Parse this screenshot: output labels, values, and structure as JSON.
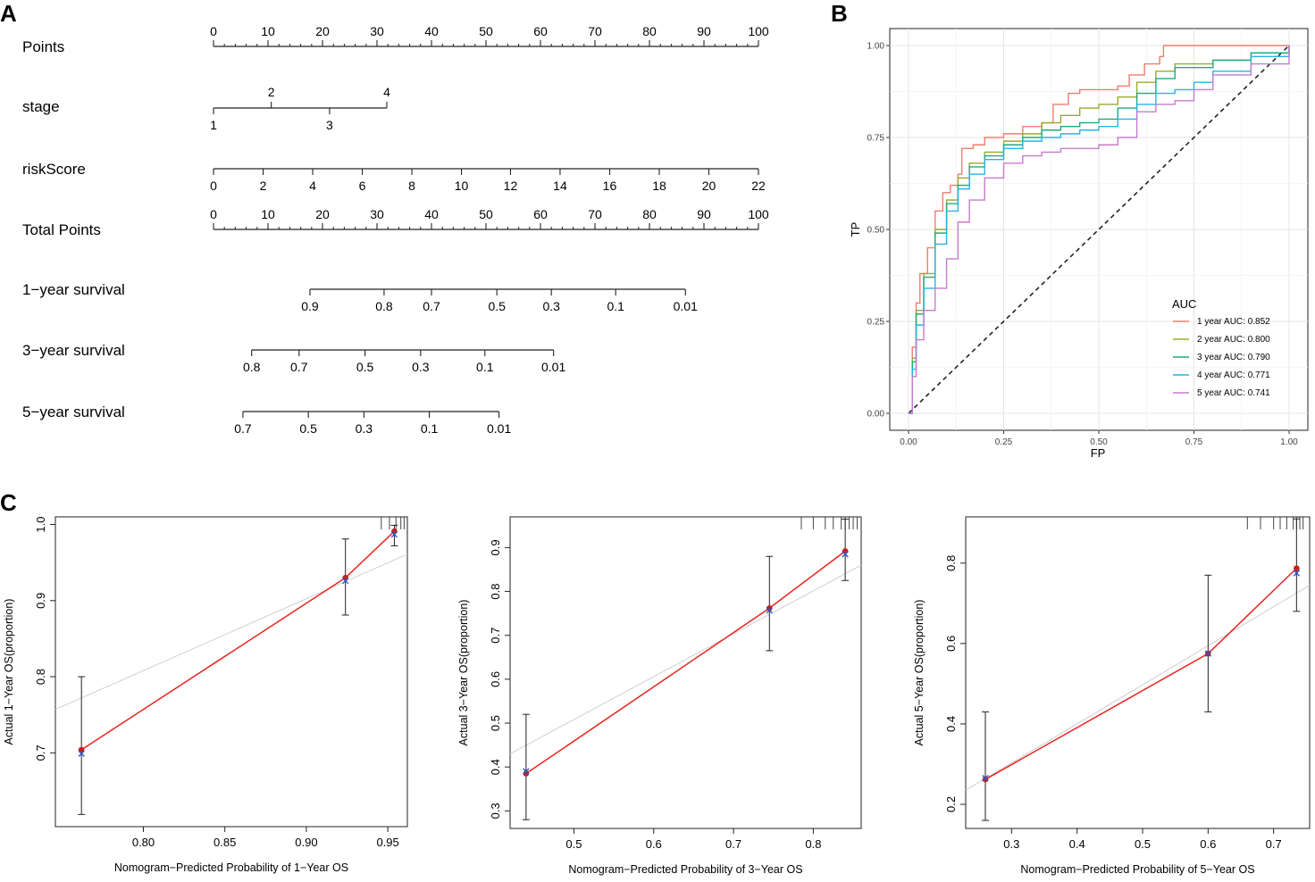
{
  "panels": {
    "a_label": "A",
    "b_label": "B",
    "c_label": "C"
  },
  "nomogram": {
    "rows": [
      {
        "name": "Points",
        "ticks": [
          {
            "v": 0,
            "t": "0"
          },
          {
            "v": 10,
            "t": "10"
          },
          {
            "v": 20,
            "t": "20"
          },
          {
            "v": 30,
            "t": "30"
          },
          {
            "v": 40,
            "t": "40"
          },
          {
            "v": 50,
            "t": "50"
          },
          {
            "v": 60,
            "t": "60"
          },
          {
            "v": 70,
            "t": "70"
          },
          {
            "v": 80,
            "t": "80"
          },
          {
            "v": 90,
            "t": "90"
          },
          {
            "v": 100,
            "t": "100"
          }
        ]
      },
      {
        "name": "stage",
        "ticks": [
          {
            "v": 0,
            "t": "1"
          },
          {
            "v": 10.6,
            "t": "2"
          },
          {
            "v": 21.3,
            "t": "3"
          },
          {
            "v": 31.8,
            "t": "4"
          }
        ]
      },
      {
        "name": "riskScore",
        "ticks": [
          {
            "v": 0,
            "t": "0"
          },
          {
            "v": 9.1,
            "t": "2"
          },
          {
            "v": 18.2,
            "t": "4"
          },
          {
            "v": 27.3,
            "t": "6"
          },
          {
            "v": 36.4,
            "t": "8"
          },
          {
            "v": 45.5,
            "t": "10"
          },
          {
            "v": 54.5,
            "t": "12"
          },
          {
            "v": 63.6,
            "t": "14"
          },
          {
            "v": 72.7,
            "t": "16"
          },
          {
            "v": 81.8,
            "t": "18"
          },
          {
            "v": 90.9,
            "t": "20"
          },
          {
            "v": 100,
            "t": "22"
          }
        ]
      },
      {
        "name": "Total Points",
        "ticks": [
          {
            "v": 0,
            "t": "0"
          },
          {
            "v": 10,
            "t": "10"
          },
          {
            "v": 20,
            "t": "20"
          },
          {
            "v": 30,
            "t": "30"
          },
          {
            "v": 40,
            "t": "40"
          },
          {
            "v": 50,
            "t": "50"
          },
          {
            "v": 60,
            "t": "60"
          },
          {
            "v": 70,
            "t": "70"
          },
          {
            "v": 80,
            "t": "80"
          },
          {
            "v": 90,
            "t": "90"
          },
          {
            "v": 100,
            "t": "100"
          }
        ]
      },
      {
        "name": "1−year survival",
        "ticks": [
          {
            "v": 17.7,
            "t": "0.9"
          },
          {
            "v": 31.3,
            "t": "0.8"
          },
          {
            "v": 40.0,
            "t": "0.7"
          },
          {
            "v": 52.0,
            "t": "0.5"
          },
          {
            "v": 62.0,
            "t": "0.3"
          },
          {
            "v": 73.8,
            "t": "0.1"
          },
          {
            "v": 86.6,
            "t": "0.01"
          }
        ]
      },
      {
        "name": "3−year survival",
        "ticks": [
          {
            "v": 7.0,
            "t": "0.8"
          },
          {
            "v": 15.7,
            "t": "0.7"
          },
          {
            "v": 27.8,
            "t": "0.5"
          },
          {
            "v": 38.0,
            "t": "0.3"
          },
          {
            "v": 49.8,
            "t": "0.1"
          },
          {
            "v": 62.4,
            "t": "0.01"
          }
        ]
      },
      {
        "name": "5−year survival",
        "ticks": [
          {
            "v": 5.4,
            "t": "0.7"
          },
          {
            "v": 17.4,
            "t": "0.5"
          },
          {
            "v": 27.6,
            "t": "0.3"
          },
          {
            "v": 39.6,
            "t": "0.1"
          },
          {
            "v": 52.4,
            "t": "0.01"
          }
        ]
      }
    ]
  },
  "chart_data": [
    {
      "type": "line",
      "panel": "B",
      "title": "",
      "xlabel": "FP",
      "ylabel": "TP",
      "xlim": [
        0,
        1
      ],
      "ylim": [
        0,
        1
      ],
      "x_ticks": [
        "0.00",
        "0.25",
        "0.50",
        "0.75",
        "1.00"
      ],
      "y_ticks": [
        "0.00",
        "0.25",
        "0.50",
        "0.75",
        "1.00"
      ],
      "legend_title": "AUC",
      "legend_position": "bottom-right",
      "diagonal_reference": true,
      "series": [
        {
          "name": "1 year AUC: 0.852",
          "color": "#F07C6E",
          "points": [
            [
              0,
              0
            ],
            [
              0.01,
              0.18
            ],
            [
              0.02,
              0.3
            ],
            [
              0.03,
              0.38
            ],
            [
              0.05,
              0.45
            ],
            [
              0.07,
              0.55
            ],
            [
              0.09,
              0.6
            ],
            [
              0.11,
              0.62
            ],
            [
              0.13,
              0.65
            ],
            [
              0.14,
              0.72
            ],
            [
              0.17,
              0.73
            ],
            [
              0.2,
              0.75
            ],
            [
              0.25,
              0.76
            ],
            [
              0.3,
              0.78
            ],
            [
              0.35,
              0.79
            ],
            [
              0.38,
              0.84
            ],
            [
              0.42,
              0.87
            ],
            [
              0.45,
              0.88
            ],
            [
              0.55,
              0.89
            ],
            [
              0.58,
              0.92
            ],
            [
              0.62,
              0.95
            ],
            [
              0.66,
              0.97
            ],
            [
              0.67,
              1.0
            ],
            [
              1.0,
              1.0
            ]
          ]
        },
        {
          "name": "2 year AUC: 0.800",
          "color": "#9AAA2E",
          "points": [
            [
              0,
              0
            ],
            [
              0.01,
              0.15
            ],
            [
              0.02,
              0.28
            ],
            [
              0.04,
              0.38
            ],
            [
              0.07,
              0.5
            ],
            [
              0.1,
              0.58
            ],
            [
              0.13,
              0.64
            ],
            [
              0.16,
              0.68
            ],
            [
              0.2,
              0.71
            ],
            [
              0.25,
              0.74
            ],
            [
              0.3,
              0.76
            ],
            [
              0.35,
              0.79
            ],
            [
              0.4,
              0.81
            ],
            [
              0.45,
              0.83
            ],
            [
              0.5,
              0.84
            ],
            [
              0.55,
              0.86
            ],
            [
              0.6,
              0.9
            ],
            [
              0.65,
              0.93
            ],
            [
              0.7,
              0.95
            ],
            [
              0.8,
              0.96
            ],
            [
              0.9,
              0.98
            ],
            [
              1.0,
              1.0
            ]
          ]
        },
        {
          "name": "3 year AUC: 0.790",
          "color": "#1FAA7C",
          "points": [
            [
              0,
              0
            ],
            [
              0.01,
              0.14
            ],
            [
              0.02,
              0.27
            ],
            [
              0.04,
              0.37
            ],
            [
              0.07,
              0.49
            ],
            [
              0.1,
              0.57
            ],
            [
              0.13,
              0.62
            ],
            [
              0.16,
              0.67
            ],
            [
              0.2,
              0.7
            ],
            [
              0.25,
              0.73
            ],
            [
              0.3,
              0.75
            ],
            [
              0.35,
              0.77
            ],
            [
              0.4,
              0.78
            ],
            [
              0.45,
              0.79
            ],
            [
              0.5,
              0.8
            ],
            [
              0.55,
              0.83
            ],
            [
              0.6,
              0.87
            ],
            [
              0.65,
              0.91
            ],
            [
              0.7,
              0.94
            ],
            [
              0.8,
              0.96
            ],
            [
              0.9,
              0.98
            ],
            [
              1.0,
              1.0
            ]
          ]
        },
        {
          "name": "4 year AUC: 0.771",
          "color": "#27B4E6",
          "points": [
            [
              0,
              0
            ],
            [
              0.01,
              0.12
            ],
            [
              0.02,
              0.24
            ],
            [
              0.04,
              0.34
            ],
            [
              0.07,
              0.46
            ],
            [
              0.1,
              0.55
            ],
            [
              0.13,
              0.61
            ],
            [
              0.16,
              0.65
            ],
            [
              0.2,
              0.69
            ],
            [
              0.25,
              0.72
            ],
            [
              0.3,
              0.74
            ],
            [
              0.35,
              0.75
            ],
            [
              0.4,
              0.76
            ],
            [
              0.45,
              0.77
            ],
            [
              0.5,
              0.78
            ],
            [
              0.55,
              0.8
            ],
            [
              0.6,
              0.84
            ],
            [
              0.65,
              0.87
            ],
            [
              0.7,
              0.88
            ],
            [
              0.75,
              0.9
            ],
            [
              0.8,
              0.93
            ],
            [
              0.9,
              0.97
            ],
            [
              1.0,
              1.0
            ]
          ]
        },
        {
          "name": "5 year AUC: 0.741",
          "color": "#C77CCB",
          "points": [
            [
              0,
              0
            ],
            [
              0.01,
              0.1
            ],
            [
              0.02,
              0.2
            ],
            [
              0.04,
              0.28
            ],
            [
              0.07,
              0.34
            ],
            [
              0.1,
              0.42
            ],
            [
              0.13,
              0.52
            ],
            [
              0.16,
              0.58
            ],
            [
              0.2,
              0.64
            ],
            [
              0.25,
              0.68
            ],
            [
              0.3,
              0.7
            ],
            [
              0.35,
              0.71
            ],
            [
              0.4,
              0.72
            ],
            [
              0.45,
              0.72
            ],
            [
              0.5,
              0.73
            ],
            [
              0.55,
              0.75
            ],
            [
              0.6,
              0.82
            ],
            [
              0.65,
              0.84
            ],
            [
              0.7,
              0.85
            ],
            [
              0.75,
              0.88
            ],
            [
              0.8,
              0.92
            ],
            [
              0.9,
              0.95
            ],
            [
              1.0,
              1.0
            ]
          ]
        }
      ]
    },
    {
      "type": "line",
      "panel": "C1",
      "xlabel": "Nomogram−Predicted Probability of 1−Year OS",
      "ylabel": "Actual 1−Year OS(proportion)",
      "xlim": [
        0.746,
        0.962
      ],
      "ylim": [
        0.603,
        1.01
      ],
      "x_ticks": [
        "0.80",
        "0.85",
        "0.90",
        "0.95"
      ],
      "x_tick_values": [
        0.8,
        0.85,
        0.9,
        0.95
      ],
      "y_ticks": [
        "0.7",
        "0.8",
        "0.9",
        "1.0"
      ],
      "y_tick_values": [
        0.7,
        0.8,
        0.9,
        1.0
      ],
      "ideal_line": [
        [
          0.746,
          0.757
        ],
        [
          0.962,
          0.961
        ]
      ],
      "points": [
        {
          "x": 0.762,
          "y": 0.704,
          "x_corrected": 0.699,
          "lo": 0.619,
          "hi": 0.8
        },
        {
          "x": 0.924,
          "y": 0.93,
          "x_corrected": 0.926,
          "lo": 0.881,
          "hi": 0.981
        },
        {
          "x": 0.954,
          "y": 0.991,
          "x_corrected": 0.987,
          "lo": 0.972,
          "hi": 0.999
        }
      ],
      "rug": [
        0.946,
        0.951,
        0.955,
        0.958,
        0.96
      ]
    },
    {
      "type": "line",
      "panel": "C2",
      "xlabel": "Nomogram−Predicted Probability of 3−Year OS",
      "ylabel": "Actual 3−Year OS(proportion)",
      "xlim": [
        0.42,
        0.86
      ],
      "ylim": [
        0.26,
        0.97
      ],
      "x_ticks": [
        "0.5",
        "0.6",
        "0.7",
        "0.8"
      ],
      "x_tick_values": [
        0.5,
        0.6,
        0.7,
        0.8
      ],
      "y_ticks": [
        "0.3",
        "0.4",
        "0.5",
        "0.6",
        "0.7",
        "0.8",
        "0.9"
      ],
      "y_tick_values": [
        0.3,
        0.4,
        0.5,
        0.6,
        0.7,
        0.8,
        0.9
      ],
      "ideal_line": [
        [
          0.42,
          0.43
        ],
        [
          0.86,
          0.86
        ]
      ],
      "points": [
        {
          "x": 0.44,
          "y": 0.385,
          "x_corrected": 0.39,
          "lo": 0.28,
          "hi": 0.52
        },
        {
          "x": 0.745,
          "y": 0.762,
          "x_corrected": 0.757,
          "lo": 0.665,
          "hi": 0.88
        },
        {
          "x": 0.84,
          "y": 0.892,
          "x_corrected": 0.885,
          "lo": 0.825,
          "hi": 0.965
        }
      ],
      "rug": [
        0.785,
        0.8,
        0.815,
        0.825,
        0.835,
        0.84,
        0.845,
        0.85,
        0.855
      ]
    },
    {
      "type": "line",
      "panel": "C3",
      "xlabel": "Nomogram−Predicted Probability of 5−Year OS",
      "ylabel": "Actual 5−Year OS(proportion)",
      "xlim": [
        0.23,
        0.755
      ],
      "ylim": [
        0.14,
        0.915
      ],
      "x_ticks": [
        "0.3",
        "0.4",
        "0.5",
        "0.6",
        "0.7"
      ],
      "x_tick_values": [
        0.3,
        0.4,
        0.5,
        0.6,
        0.7
      ],
      "y_ticks": [
        "0.2",
        "0.4",
        "0.6",
        "0.8"
      ],
      "y_tick_values": [
        0.2,
        0.4,
        0.6,
        0.8
      ],
      "ideal_line": [
        [
          0.23,
          0.235
        ],
        [
          0.755,
          0.745
        ]
      ],
      "points": [
        {
          "x": 0.26,
          "y": 0.262,
          "x_corrected": 0.265,
          "lo": 0.16,
          "hi": 0.43
        },
        {
          "x": 0.6,
          "y": 0.575,
          "x_corrected": 0.575,
          "lo": 0.43,
          "hi": 0.77
        },
        {
          "x": 0.735,
          "y": 0.787,
          "x_corrected": 0.775,
          "lo": 0.68,
          "hi": 0.91
        }
      ],
      "rug": [
        0.66,
        0.68,
        0.7,
        0.71,
        0.72,
        0.73,
        0.735,
        0.74,
        0.745
      ]
    }
  ],
  "colors": {
    "red_line": "#E8231E",
    "ideal_line": "#CFCFCF",
    "point_red": "#C4201E",
    "point_blue": "#2E55C9"
  }
}
